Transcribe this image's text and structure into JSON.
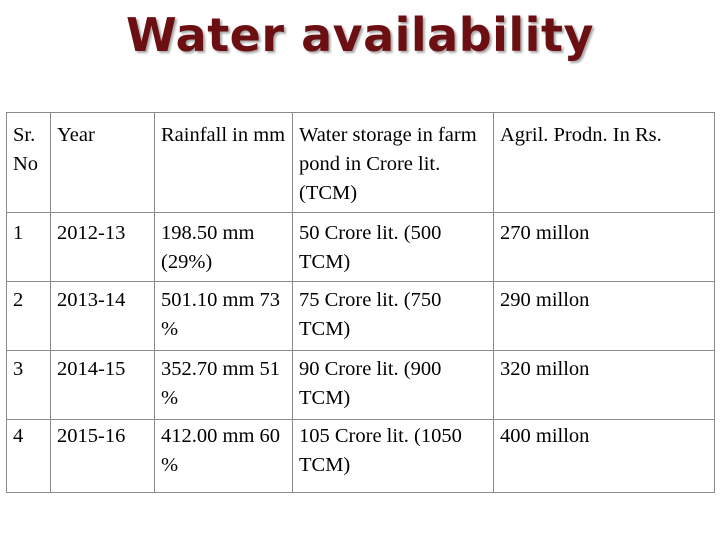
{
  "title": "Water availability",
  "table": {
    "headers": [
      "Sr. No",
      "Year",
      "Rainfall in mm",
      "Water storage in farm pond  in Crore lit. (TCM)",
      "Agril. Prodn. In Rs."
    ],
    "rows": [
      [
        "1",
        "2012-13",
        "198.50 mm (29%)",
        "50 Crore lit. (500 TCM)",
        "270 millon"
      ],
      [
        "2",
        "2013-14",
        "501.10 mm 73 %",
        "75 Crore lit. (750 TCM)",
        "290 millon"
      ],
      [
        "3",
        "2014-15",
        "352.70 mm 51 %",
        "90 Crore lit. (900 TCM)",
        "320 millon"
      ],
      [
        "4",
        "2015-16",
        "412.00 mm 60 %",
        "105 Crore lit. (1050 TCM)",
        "400 millon"
      ]
    ]
  },
  "colors": {
    "title": "#6b0f12",
    "border": "#8a8a8a"
  }
}
